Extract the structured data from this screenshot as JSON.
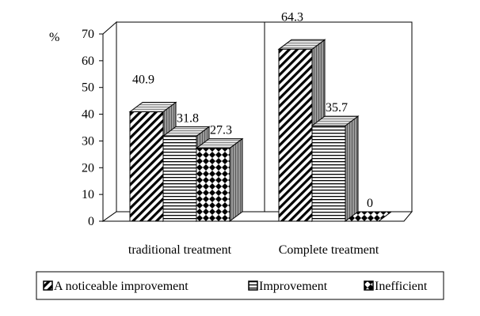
{
  "chart_data": {
    "type": "bar",
    "title": "",
    "xlabel": "",
    "ylabel": "%",
    "ylim": [
      0,
      70
    ],
    "yticks": [
      0,
      10,
      20,
      30,
      40,
      50,
      60,
      70
    ],
    "categories": [
      "traditional treatment",
      "Complete treatment"
    ],
    "series": [
      {
        "name": "A noticeable improvement",
        "values": [
          40.9,
          64.3
        ],
        "pattern": "diagonal"
      },
      {
        "name": "Improvement",
        "values": [
          31.8,
          35.7
        ],
        "pattern": "horizontal"
      },
      {
        "name": "Inefficient",
        "values": [
          27.3,
          0
        ],
        "pattern": "checker"
      }
    ],
    "data_labels": [
      [
        "40.9",
        "64.3"
      ],
      [
        "31.8",
        "35.7"
      ],
      [
        "27.3",
        "0"
      ]
    ],
    "grid": false,
    "legend_position": "bottom",
    "colors": {
      "bar_fill": "#ffffff",
      "stroke": "#000000",
      "side_fill": "#8a8a8a",
      "top_fill": "#d0d0d0"
    }
  }
}
